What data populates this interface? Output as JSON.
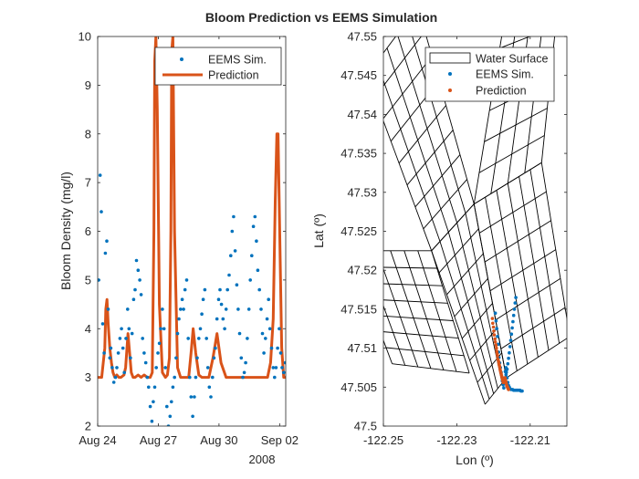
{
  "figure": {
    "title": "Bloom Prediction vs EEMS Simulation"
  },
  "chart_data": [
    {
      "type": "line",
      "title": "",
      "xlabel": "",
      "xsecondary": "2008",
      "ylabel": "Bloom Density (mg/l)",
      "xlim": [
        0,
        9.3
      ],
      "ylim": [
        2,
        10
      ],
      "xticks": [
        0,
        3,
        6,
        9
      ],
      "xticklabels": [
        "Aug 24",
        "Aug 27",
        "Aug 30",
        "Sep 02"
      ],
      "yticks": [
        2,
        3,
        4,
        5,
        6,
        7,
        8,
        9,
        10
      ],
      "legend": {
        "location": "top-right",
        "entries": [
          "EEMS Sim.",
          "Prediction"
        ]
      },
      "series": [
        {
          "name": "EEMS Sim.",
          "style": "dots",
          "color": "#0072BD",
          "x": [
            0.05,
            0.12,
            0.18,
            0.25,
            0.32,
            0.38,
            0.45,
            0.52,
            0.6,
            0.65,
            0.72,
            0.8,
            0.88,
            0.95,
            1.02,
            1.1,
            1.18,
            1.25,
            1.32,
            1.4,
            1.48,
            1.55,
            1.62,
            1.7,
            1.78,
            1.85,
            1.92,
            2.0,
            2.08,
            2.15,
            2.22,
            2.3,
            2.38,
            2.45,
            2.52,
            2.6,
            2.68,
            2.75,
            2.82,
            2.9,
            2.98,
            3.05,
            3.12,
            3.2,
            3.28,
            3.35,
            3.42,
            3.5,
            3.58,
            3.65,
            3.72,
            3.8,
            3.88,
            3.95,
            4.02,
            4.1,
            4.18,
            4.25,
            4.32,
            4.4,
            4.48,
            4.55,
            4.62,
            4.7,
            4.78,
            4.85,
            4.92,
            5.0,
            5.08,
            5.15,
            5.22,
            5.3,
            5.38,
            5.45,
            5.52,
            5.6,
            5.68,
            5.75,
            5.82,
            5.9,
            5.98,
            6.05,
            6.12,
            6.2,
            6.28,
            6.35,
            6.42,
            6.5,
            6.58,
            6.65,
            6.72,
            6.8,
            6.88,
            6.95,
            7.02,
            7.1,
            7.18,
            7.25,
            7.32,
            7.4,
            7.48,
            7.55,
            7.62,
            7.7,
            7.78,
            7.85,
            7.92,
            8.0,
            8.08,
            8.15,
            8.22,
            8.3,
            8.38,
            8.45,
            8.52,
            8.6,
            8.68,
            8.75,
            8.82,
            8.9,
            8.98,
            9.05,
            9.12,
            9.2,
            9.28
          ],
          "y": [
            5.0,
            7.15,
            6.4,
            4.1,
            3.5,
            5.55,
            5.8,
            4.4,
            3.4,
            3.6,
            3.2,
            2.9,
            3.0,
            3.2,
            3.5,
            3.8,
            4.0,
            3.6,
            3.1,
            3.8,
            4.4,
            4.0,
            3.4,
            3.9,
            4.6,
            4.8,
            5.4,
            5.2,
            5.0,
            4.7,
            3.8,
            3.5,
            3.3,
            3.0,
            2.8,
            2.4,
            2.1,
            2.5,
            2.8,
            3.2,
            3.5,
            3.7,
            4.0,
            4.4,
            4.0,
            3.2,
            2.4,
            2.0,
            2.2,
            2.5,
            2.8,
            3.0,
            3.4,
            3.9,
            4.2,
            4.4,
            4.6,
            4.4,
            4.8,
            5.0,
            3.8,
            3.0,
            2.6,
            2.2,
            2.6,
            3.0,
            3.4,
            3.8,
            4.0,
            4.3,
            4.6,
            4.8,
            3.8,
            3.2,
            2.8,
            2.6,
            3.0,
            3.4,
            3.6,
            4.2,
            4.6,
            4.8,
            4.5,
            4.2,
            4.0,
            4.4,
            4.8,
            5.1,
            5.5,
            6.0,
            6.3,
            5.6,
            4.9,
            4.4,
            3.9,
            3.4,
            3.0,
            3.1,
            3.3,
            3.8,
            4.4,
            5.0,
            5.5,
            6.1,
            6.3,
            5.8,
            5.2,
            4.8,
            4.4,
            3.9,
            3.5,
            3.8,
            4.2,
            4.6,
            4.0,
            3.6,
            3.2,
            3.0,
            3.2,
            3.6,
            4.0,
            3.5,
            3.2,
            3.1,
            3.3
          ]
        },
        {
          "name": "Prediction",
          "style": "line",
          "color": "#D95319",
          "x": [
            0.0,
            0.2,
            0.35,
            0.4,
            0.46,
            0.52,
            0.6,
            0.68,
            0.76,
            0.85,
            0.95,
            1.05,
            1.15,
            1.3,
            1.38,
            1.45,
            1.5,
            1.58,
            1.66,
            1.75,
            1.85,
            2.0,
            2.15,
            2.3,
            2.45,
            2.6,
            2.7,
            2.78,
            2.82,
            2.88,
            2.95,
            3.05,
            3.2,
            3.35,
            3.45,
            3.55,
            3.62,
            3.66,
            3.72,
            3.8,
            3.95,
            4.1,
            4.3,
            4.5,
            4.62,
            4.72,
            4.85,
            5.0,
            5.15,
            5.35,
            5.5,
            5.7,
            5.9,
            6.1,
            6.35,
            6.6,
            6.85,
            7.1,
            7.4,
            7.7,
            8.0,
            8.2,
            8.4,
            8.55,
            8.68,
            8.78,
            8.86,
            8.92,
            9.0,
            9.1,
            9.2,
            9.3
          ],
          "y": [
            3.0,
            3.0,
            3.6,
            4.4,
            4.6,
            4.1,
            3.6,
            3.3,
            3.1,
            3.0,
            3.05,
            3.0,
            3.0,
            3.05,
            3.2,
            3.6,
            3.9,
            3.5,
            3.1,
            3.0,
            3.0,
            3.05,
            3.0,
            3.05,
            3.0,
            3.0,
            3.1,
            6.0,
            9.5,
            10.0,
            8.5,
            4.5,
            3.1,
            3.0,
            3.05,
            3.4,
            6.0,
            9.7,
            10.0,
            6.0,
            3.2,
            3.0,
            3.0,
            3.0,
            3.5,
            4.0,
            3.5,
            3.05,
            3.0,
            3.0,
            3.0,
            3.4,
            3.9,
            3.3,
            3.0,
            3.0,
            3.0,
            3.0,
            3.0,
            3.0,
            3.0,
            3.0,
            3.0,
            3.3,
            4.2,
            6.6,
            8.0,
            8.0,
            6.0,
            3.6,
            3.0,
            3.0
          ]
        }
      ]
    },
    {
      "type": "scatter",
      "title": "",
      "xlabel": "Lon (º)",
      "ylabel": "Lat (º)",
      "xlim": [
        -122.25,
        -122.2
      ],
      "ylim": [
        47.5,
        47.55
      ],
      "xticks": [
        -122.25,
        -122.23,
        -122.21
      ],
      "xticklabels": [
        "-122.25",
        "-122.23",
        "-122.21"
      ],
      "yticks": [
        47.5,
        47.505,
        47.51,
        47.515,
        47.52,
        47.525,
        47.53,
        47.535,
        47.54,
        47.545,
        47.55
      ],
      "yticklabels": [
        "47.5",
        "47.505",
        "47.51",
        "47.515",
        "47.52",
        "47.525",
        "47.53",
        "47.535",
        "47.54",
        "47.545",
        "47.55"
      ],
      "legend": {
        "location": "top-right",
        "entries": [
          "Water Surface",
          "EEMS Sim.",
          "Prediction"
        ]
      },
      "mesh": {
        "name": "Water Surface",
        "color": "#000000",
        "blocks": [
          {
            "ul": [
              -122.2546,
              47.545
            ],
            "ur": [
              -122.2406,
              47.5538
            ],
            "ll": [
              -122.2369,
              47.5225
            ],
            "lr": [
              -122.2253,
              47.5285
            ],
            "nu": 5,
            "nv": 8
          },
          {
            "ul": [
              -122.2369,
              47.5225
            ],
            "ur": [
              -122.2253,
              47.5285
            ],
            "ll": [
              -122.2223,
              47.5028
            ],
            "lr": [
              -122.2165,
              47.5062
            ],
            "nu": 5,
            "nv": 7
          },
          {
            "ul": [
              -122.2592,
              47.5225
            ],
            "ur": [
              -122.2369,
              47.5225
            ],
            "ll": [
              -122.2476,
              47.508
            ],
            "lr": [
              -122.2266,
              47.5068
            ],
            "nu": 6,
            "nv": 7
          },
          {
            "ul": [
              -122.2253,
              47.5285
            ],
            "ur": [
              -122.2069,
              47.5338
            ],
            "ll": [
              -122.2165,
              47.5062
            ],
            "lr": [
              -122.1992,
              47.5115
            ],
            "nu": 6,
            "nv": 6
          },
          {
            "ul": [
              -122.2169,
              47.5525
            ],
            "ur": [
              -122.2023,
              47.5548
            ],
            "ll": [
              -122.2253,
              47.5285
            ],
            "lr": [
              -122.2069,
              47.5338
            ],
            "nu": 4,
            "nv": 6
          }
        ]
      },
      "series": [
        {
          "name": "EEMS Sim.",
          "style": "dots",
          "color": "#0072BD",
          "x": [
            -122.2195,
            -122.2193,
            -122.2191,
            -122.2189,
            -122.2187,
            -122.2186,
            -122.2185,
            -122.2183,
            -122.2181,
            -122.2179,
            -122.2177,
            -122.2176,
            -122.2174,
            -122.2172,
            -122.2171,
            -122.2169,
            -122.2168,
            -122.2166,
            -122.2165,
            -122.2163,
            -122.2161,
            -122.2159,
            -122.2157,
            -122.2155,
            -122.2152,
            -122.2148,
            -122.2145,
            -122.2142,
            -122.2138,
            -122.2135,
            -122.2132,
            -122.2128,
            -122.2125,
            -122.2122,
            -122.2139,
            -122.2141,
            -122.2143,
            -122.2145,
            -122.2147,
            -122.2149,
            -122.2151,
            -122.2153,
            -122.2155,
            -122.2157,
            -122.2159,
            -122.2161,
            -122.2163,
            -122.2166,
            -122.2168
          ],
          "y": [
            47.5145,
            47.5135,
            47.5125,
            47.5115,
            47.5105,
            47.5095,
            47.5088,
            47.5081,
            47.5075,
            47.5069,
            47.5063,
            47.5058,
            47.5053,
            47.5049,
            47.5055,
            47.5062,
            47.507,
            47.5075,
            47.5069,
            47.5062,
            47.5056,
            47.5052,
            47.505,
            47.5048,
            47.5047,
            47.5047,
            47.5046,
            47.5046,
            47.5046,
            47.5046,
            47.5046,
            47.5046,
            47.5045,
            47.5045,
            47.5165,
            47.5158,
            47.515,
            47.5142,
            47.5134,
            47.5126,
            47.5118,
            47.511,
            47.5102,
            47.5094,
            47.5087,
            47.508,
            47.5073,
            47.5066,
            47.506
          ]
        },
        {
          "name": "Prediction",
          "style": "dots",
          "color": "#D95319",
          "x": [
            -122.2203,
            -122.2202,
            -122.22,
            -122.2199,
            -122.2198,
            -122.2196,
            -122.2195,
            -122.2193,
            -122.2192,
            -122.2191,
            -122.219,
            -122.2189,
            -122.2188,
            -122.2186,
            -122.2185,
            -122.2184,
            -122.2183,
            -122.2182,
            -122.2181,
            -122.218,
            -122.2179,
            -122.2178,
            -122.2177,
            -122.2176,
            -122.2175,
            -122.2174,
            -122.2173,
            -122.2172,
            -122.2171,
            -122.217,
            -122.2169,
            -122.2168,
            -122.2167,
            -122.2166,
            -122.2165,
            -122.2164,
            -122.2163,
            -122.2162,
            -122.2161,
            -122.216,
            -122.2159
          ],
          "y": [
            47.5138,
            47.5132,
            47.5127,
            47.5122,
            47.5117,
            47.5112,
            47.5108,
            47.5104,
            47.51,
            47.5096,
            47.5093,
            47.509,
            47.5086,
            47.5083,
            47.508,
            47.5078,
            47.5076,
            47.5073,
            47.5071,
            47.5069,
            47.5067,
            47.5065,
            47.5063,
            47.5061,
            47.5059,
            47.5057,
            47.5056,
            47.5057,
            47.5059,
            47.5061,
            47.5062,
            47.506,
            47.5058,
            47.5056,
            47.5054,
            47.5052,
            47.5051,
            47.505,
            47.5049,
            47.5048,
            47.5047
          ]
        }
      ]
    }
  ]
}
